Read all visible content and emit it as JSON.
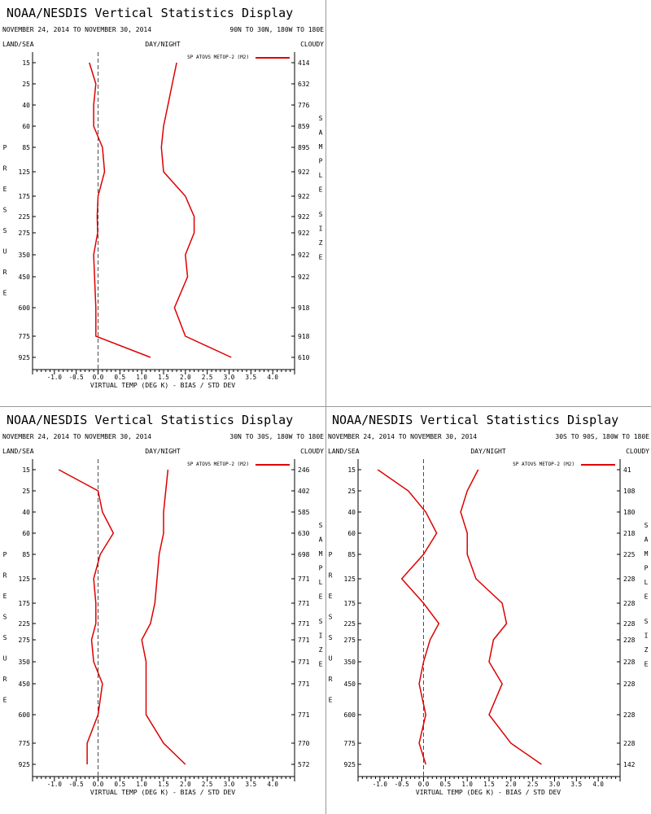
{
  "header": {
    "title": "NOAA/NESDIS Vertical Statistics Display",
    "dates": "NOVEMBER 24, 2014 TO NOVEMBER 30, 2014"
  },
  "labels": {
    "land_sea": "LAND/SEA",
    "day_night": "DAY/NIGHT",
    "cloudy": "CLOUDY",
    "pressure_axis": "PRESSURE",
    "sample_size_axis": "SAMPLE SIZE",
    "xlabel": "VIRTUAL TEMP (DEG K) - BIAS / STD DEV",
    "legend": "SP ATOVS METOP-2 (M2)"
  },
  "colors": {
    "series": "#dd0000",
    "zero_line": "#000000"
  },
  "chart_data": [
    {
      "type": "line",
      "region": "90N TO 30N, 180W TO 180E",
      "pressure_levels": [
        15,
        25,
        40,
        60,
        85,
        125,
        175,
        225,
        275,
        350,
        450,
        600,
        775,
        925
      ],
      "xlim": [
        -1.5,
        4.5
      ],
      "xticks": [
        -1.0,
        -0.5,
        0.0,
        0.5,
        1.0,
        1.5,
        2.0,
        2.5,
        3.0,
        3.5,
        4.0
      ],
      "sample_size": [
        414,
        632,
        776,
        859,
        895,
        922,
        922,
        922,
        922,
        922,
        922,
        918,
        918,
        610
      ],
      "series": [
        {
          "values": [
            -0.2,
            -0.05,
            -0.1,
            -0.1,
            0.1,
            0.15,
            0.0,
            -0.02,
            -0.01,
            -0.1,
            -0.08,
            -0.05,
            -0.05,
            1.2
          ]
        },
        {
          "values": [
            1.8,
            1.7,
            1.6,
            1.5,
            1.45,
            1.5,
            2.0,
            2.2,
            2.2,
            2.0,
            2.05,
            1.75,
            2.0,
            3.05
          ]
        }
      ]
    },
    {
      "type": "line",
      "region": "30N TO 30S, 180W TO 180E",
      "pressure_levels": [
        15,
        25,
        40,
        60,
        85,
        125,
        175,
        225,
        275,
        350,
        450,
        600,
        775,
        925
      ],
      "xlim": [
        -1.5,
        4.5
      ],
      "xticks": [
        -1.0,
        -0.5,
        0.0,
        0.5,
        1.0,
        1.5,
        2.0,
        2.5,
        3.0,
        3.5,
        4.0
      ],
      "sample_size": [
        246,
        402,
        585,
        630,
        698,
        771,
        771,
        771,
        771,
        771,
        771,
        771,
        770,
        572
      ],
      "series": [
        {
          "values": [
            -0.9,
            0.0,
            0.1,
            0.35,
            0.05,
            -0.1,
            -0.05,
            -0.05,
            -0.15,
            -0.1,
            0.1,
            0.0,
            -0.25,
            -0.25
          ]
        },
        {
          "values": [
            1.6,
            1.55,
            1.5,
            1.5,
            1.4,
            1.35,
            1.3,
            1.2,
            1.0,
            1.1,
            1.1,
            1.1,
            1.5,
            2.0
          ]
        }
      ]
    },
    {
      "type": "line",
      "region": "30S TO 90S, 180W TO 180E",
      "pressure_levels": [
        15,
        25,
        40,
        60,
        85,
        125,
        175,
        225,
        275,
        350,
        450,
        600,
        775,
        925
      ],
      "xlim": [
        -1.5,
        4.5
      ],
      "xticks": [
        -1.0,
        -0.5,
        0.0,
        0.5,
        1.0,
        1.5,
        2.0,
        2.5,
        3.0,
        3.5,
        4.0
      ],
      "sample_size": [
        41,
        108,
        180,
        218,
        225,
        228,
        228,
        228,
        228,
        228,
        228,
        228,
        228,
        142
      ],
      "series": [
        {
          "values": [
            -1.05,
            -0.35,
            0.05,
            0.3,
            0.0,
            -0.5,
            0.0,
            0.35,
            0.15,
            0.0,
            -0.1,
            0.05,
            -0.1,
            0.05
          ]
        },
        {
          "values": [
            1.25,
            1.0,
            0.85,
            1.0,
            1.0,
            1.2,
            1.8,
            1.9,
            1.6,
            1.5,
            1.8,
            1.5,
            2.0,
            2.7
          ]
        }
      ]
    }
  ]
}
